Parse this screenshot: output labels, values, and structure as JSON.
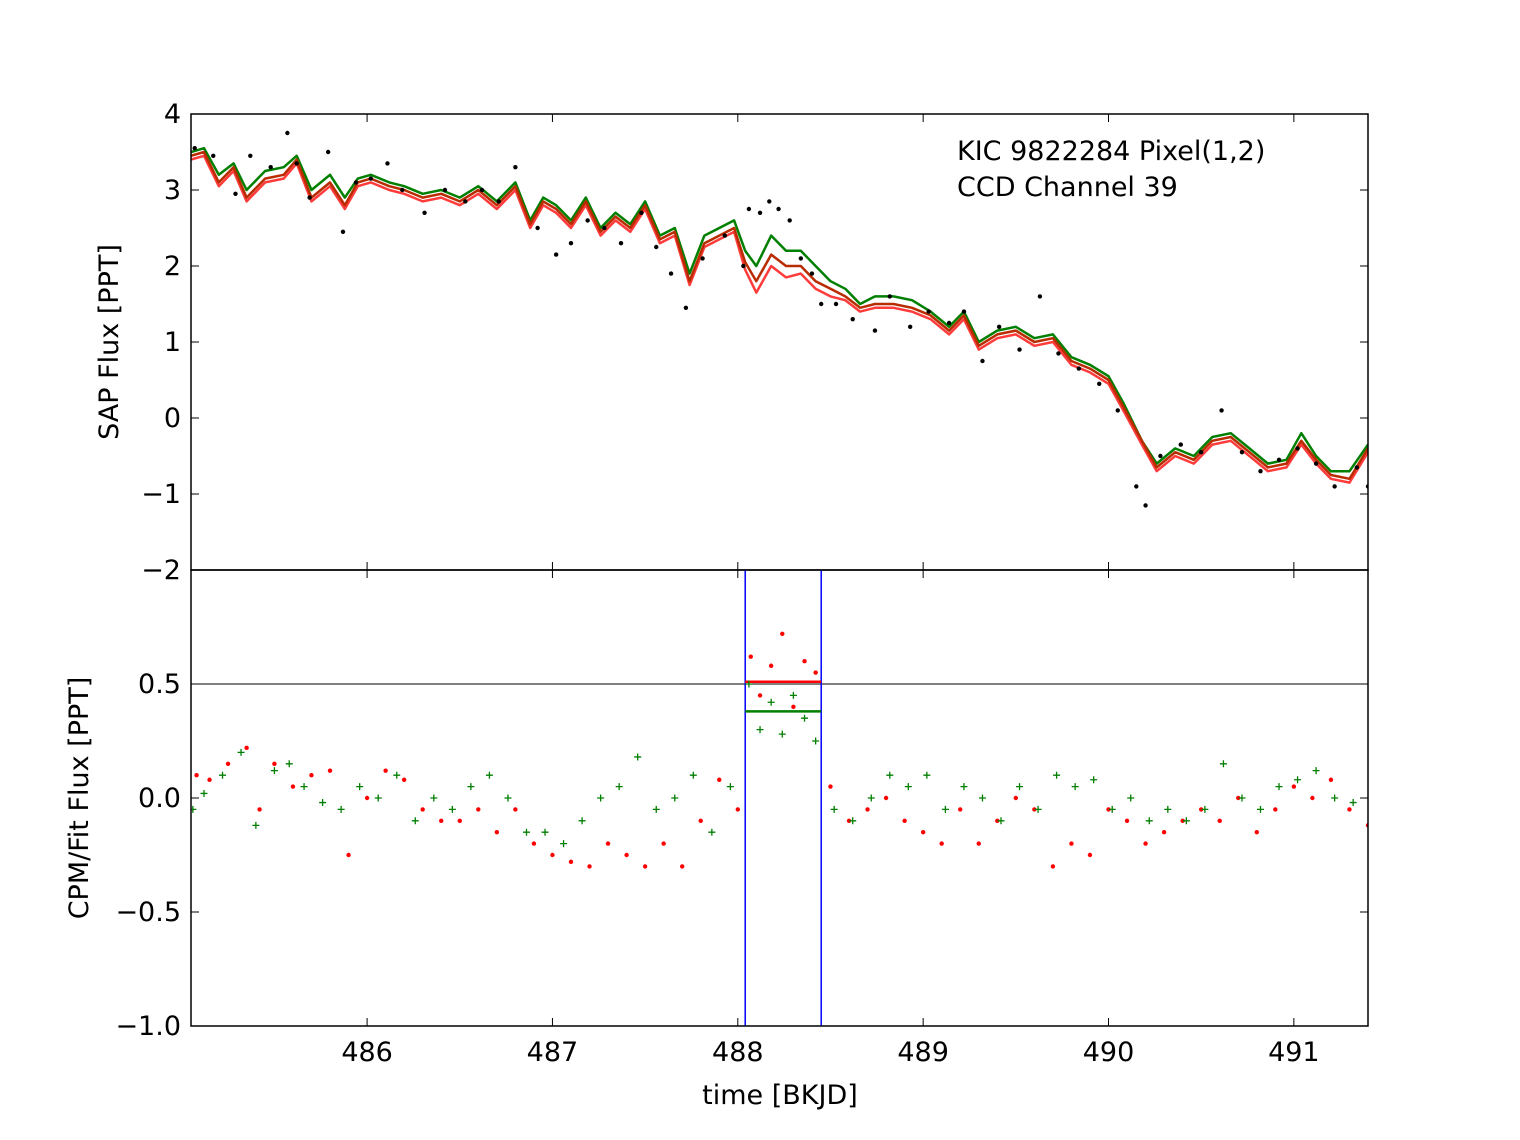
{
  "chart_data": [
    {
      "type": "line",
      "panel": "top",
      "annotation": [
        "KIC 9822284 Pixel(1,2)",
        "CCD Channel 39"
      ],
      "xlabel": "",
      "ylabel": "SAP Flux [PPT]",
      "xlim": [
        485.05,
        491.4
      ],
      "ylim": [
        -2,
        4
      ],
      "yticks": [
        -2,
        -1,
        0,
        1,
        2,
        3,
        4
      ],
      "ytick_labels": [
        "−2",
        "−1",
        "0",
        "1",
        "2",
        "3",
        "4"
      ],
      "xticks": [
        486,
        487,
        488,
        489,
        490,
        491
      ],
      "grid": false,
      "colors": {
        "data": "#000000",
        "green_model": "#007f00",
        "red_model": "#ff3b3b",
        "brown_model": "#b82c00"
      },
      "data_points": {
        "x": [
          485.07,
          485.17,
          485.29,
          485.37,
          485.48,
          485.57,
          485.62,
          485.69,
          485.79,
          485.87,
          485.94,
          486.02,
          486.11,
          486.19,
          486.31,
          486.42,
          486.53,
          486.62,
          486.71,
          486.8,
          486.92,
          487.02,
          487.1,
          487.19,
          487.28,
          487.37,
          487.48,
          487.56,
          487.64,
          487.72,
          487.81,
          487.93,
          488.03,
          488.06,
          488.12,
          488.17,
          488.22,
          488.28,
          488.34,
          488.4,
          488.45,
          488.53,
          488.62,
          488.74,
          488.82,
          488.93,
          489.03,
          489.14,
          489.22,
          489.32,
          489.41,
          489.52,
          489.63,
          489.73,
          489.84,
          489.95,
          490.05,
          490.15,
          490.2,
          490.28,
          490.39,
          490.5,
          490.61,
          490.72,
          490.82,
          490.92,
          491.02,
          491.12,
          491.22,
          491.34,
          491.4
        ],
        "y": [
          3.55,
          3.45,
          2.95,
          3.45,
          3.3,
          3.75,
          3.35,
          2.9,
          3.5,
          2.45,
          3.1,
          3.15,
          3.35,
          3.0,
          2.7,
          3.0,
          2.85,
          3.0,
          2.85,
          3.3,
          2.5,
          2.15,
          2.3,
          2.6,
          2.5,
          2.3,
          2.7,
          2.25,
          1.9,
          1.45,
          2.1,
          2.4,
          2.0,
          2.75,
          2.7,
          2.85,
          2.75,
          2.6,
          2.1,
          1.9,
          1.5,
          1.5,
          1.3,
          1.15,
          1.6,
          1.2,
          1.4,
          1.25,
          1.4,
          0.75,
          1.2,
          0.9,
          1.6,
          0.85,
          0.65,
          0.45,
          0.1,
          -0.9,
          -1.15,
          -0.5,
          -0.35,
          -0.45,
          0.1,
          -0.45,
          -0.7,
          -0.55,
          -0.4,
          -0.6,
          -0.9,
          -0.65,
          -0.9
        ]
      },
      "series": [
        {
          "color": "#007f00",
          "x": [
            485.05,
            485.12,
            485.2,
            485.28,
            485.35,
            485.45,
            485.55,
            485.62,
            485.7,
            485.8,
            485.88,
            485.95,
            486.02,
            486.12,
            486.2,
            486.3,
            486.4,
            486.5,
            486.6,
            486.7,
            486.8,
            486.88,
            486.95,
            487.02,
            487.1,
            487.18,
            487.26,
            487.34,
            487.42,
            487.5,
            487.58,
            487.66,
            487.74,
            487.82,
            487.9,
            487.98,
            488.04,
            488.1,
            488.18,
            488.26,
            488.34,
            488.42,
            488.5,
            488.58,
            488.66,
            488.74,
            488.84,
            488.94,
            489.04,
            489.14,
            489.22,
            489.3,
            489.4,
            489.5,
            489.6,
            489.7,
            489.8,
            489.9,
            490.0,
            490.08,
            490.18,
            490.26,
            490.36,
            490.46,
            490.56,
            490.66,
            490.76,
            490.86,
            490.96,
            491.04,
            491.12,
            491.2,
            491.3,
            491.4
          ],
          "y": [
            3.5,
            3.55,
            3.2,
            3.35,
            3.0,
            3.25,
            3.3,
            3.45,
            3.0,
            3.2,
            2.9,
            3.15,
            3.2,
            3.1,
            3.05,
            2.95,
            3.0,
            2.9,
            3.05,
            2.85,
            3.1,
            2.6,
            2.9,
            2.8,
            2.6,
            2.9,
            2.5,
            2.7,
            2.55,
            2.85,
            2.4,
            2.5,
            1.9,
            2.4,
            2.5,
            2.6,
            2.2,
            2.0,
            2.4,
            2.2,
            2.2,
            2.0,
            1.8,
            1.7,
            1.5,
            1.6,
            1.6,
            1.55,
            1.4,
            1.2,
            1.4,
            1.0,
            1.15,
            1.2,
            1.05,
            1.1,
            0.8,
            0.7,
            0.55,
            0.2,
            -0.3,
            -0.6,
            -0.4,
            -0.5,
            -0.25,
            -0.2,
            -0.4,
            -0.6,
            -0.55,
            -0.2,
            -0.5,
            -0.7,
            -0.7,
            -0.35
          ]
        },
        {
          "color": "#ff3b3b",
          "x": [
            485.05,
            485.12,
            485.2,
            485.28,
            485.35,
            485.45,
            485.55,
            485.62,
            485.7,
            485.8,
            485.88,
            485.95,
            486.02,
            486.12,
            486.2,
            486.3,
            486.4,
            486.5,
            486.6,
            486.7,
            486.8,
            486.88,
            486.95,
            487.02,
            487.1,
            487.18,
            487.26,
            487.34,
            487.42,
            487.5,
            487.58,
            487.66,
            487.74,
            487.82,
            487.9,
            487.98,
            488.04,
            488.1,
            488.18,
            488.26,
            488.34,
            488.42,
            488.5,
            488.58,
            488.66,
            488.74,
            488.84,
            488.94,
            489.04,
            489.14,
            489.22,
            489.3,
            489.4,
            489.5,
            489.6,
            489.7,
            489.8,
            489.9,
            490.0,
            490.08,
            490.18,
            490.26,
            490.36,
            490.46,
            490.56,
            490.66,
            490.76,
            490.86,
            490.96,
            491.04,
            491.12,
            491.2,
            491.3,
            491.4
          ],
          "y": [
            3.4,
            3.45,
            3.05,
            3.25,
            2.85,
            3.1,
            3.15,
            3.35,
            2.85,
            3.05,
            2.75,
            3.05,
            3.1,
            3.0,
            2.95,
            2.85,
            2.9,
            2.8,
            2.95,
            2.75,
            3.0,
            2.5,
            2.8,
            2.7,
            2.5,
            2.8,
            2.4,
            2.6,
            2.45,
            2.75,
            2.3,
            2.4,
            1.75,
            2.25,
            2.35,
            2.45,
            1.95,
            1.65,
            2.0,
            1.85,
            1.9,
            1.7,
            1.6,
            1.55,
            1.4,
            1.45,
            1.45,
            1.4,
            1.3,
            1.1,
            1.3,
            0.9,
            1.05,
            1.1,
            0.95,
            1.0,
            0.7,
            0.6,
            0.45,
            0.1,
            -0.35,
            -0.7,
            -0.5,
            -0.6,
            -0.35,
            -0.3,
            -0.5,
            -0.7,
            -0.65,
            -0.35,
            -0.6,
            -0.8,
            -0.85,
            -0.45
          ]
        },
        {
          "color": "#b82c00",
          "x": [
            485.05,
            485.12,
            485.2,
            485.28,
            485.35,
            485.45,
            485.55,
            485.62,
            485.7,
            485.8,
            485.88,
            485.95,
            486.02,
            486.12,
            486.2,
            486.3,
            486.4,
            486.5,
            486.6,
            486.7,
            486.8,
            486.88,
            486.95,
            487.02,
            487.1,
            487.18,
            487.26,
            487.34,
            487.42,
            487.5,
            487.58,
            487.66,
            487.74,
            487.82,
            487.9,
            487.98,
            488.04,
            488.1,
            488.18,
            488.26,
            488.34,
            488.42,
            488.5,
            488.58,
            488.66,
            488.74,
            488.84,
            488.94,
            489.04,
            489.14,
            489.22,
            489.3,
            489.4,
            489.5,
            489.6,
            489.7,
            489.8,
            489.9,
            490.0,
            490.08,
            490.18,
            490.26,
            490.36,
            490.46,
            490.56,
            490.66,
            490.76,
            490.86,
            490.96,
            491.04,
            491.12,
            491.2,
            491.3,
            491.4
          ],
          "y": [
            3.45,
            3.5,
            3.1,
            3.3,
            2.9,
            3.15,
            3.2,
            3.4,
            2.9,
            3.1,
            2.8,
            3.1,
            3.15,
            3.05,
            3.0,
            2.9,
            2.95,
            2.85,
            3.0,
            2.8,
            3.05,
            2.55,
            2.85,
            2.75,
            2.55,
            2.85,
            2.45,
            2.65,
            2.5,
            2.8,
            2.35,
            2.45,
            1.8,
            2.3,
            2.4,
            2.5,
            2.05,
            1.8,
            2.15,
            2.0,
            2.0,
            1.8,
            1.7,
            1.6,
            1.45,
            1.5,
            1.5,
            1.45,
            1.35,
            1.15,
            1.35,
            0.95,
            1.1,
            1.15,
            1.0,
            1.05,
            0.75,
            0.65,
            0.5,
            0.15,
            -0.3,
            -0.65,
            -0.45,
            -0.55,
            -0.3,
            -0.25,
            -0.45,
            -0.65,
            -0.6,
            -0.3,
            -0.55,
            -0.75,
            -0.8,
            -0.4
          ]
        }
      ]
    },
    {
      "type": "scatter",
      "panel": "bottom",
      "xlabel": "time [BKJD]",
      "ylabel": "CPM/Fit Flux [PPT]",
      "xlim": [
        485.05,
        491.4
      ],
      "ylim": [
        -1.0,
        1.0
      ],
      "yticks": [
        -1.0,
        -0.5,
        0.0,
        0.5
      ],
      "ytick_labels": [
        "−1.0",
        "−0.5",
        "0.0",
        "0.5"
      ],
      "xticks": [
        486,
        487,
        488,
        489,
        490,
        491
      ],
      "xtick_labels": [
        "486",
        "487",
        "488",
        "489",
        "490",
        "491"
      ],
      "grid": false,
      "hline": 0.5,
      "vlines": [
        488.04,
        488.45
      ],
      "vline_color": "#0000ff",
      "transit_levels": [
        {
          "color": "#ff0000",
          "y": 0.51,
          "x0": 488.04,
          "x1": 488.45
        },
        {
          "color": "#007f00",
          "y": 0.38,
          "x0": 488.04,
          "x1": 488.45
        }
      ],
      "series": [
        {
          "marker": "dot",
          "color": "#ff0000",
          "x": [
            485.08,
            485.15,
            485.25,
            485.35,
            485.42,
            485.5,
            485.6,
            485.7,
            485.8,
            485.9,
            486.0,
            486.1,
            486.2,
            486.3,
            486.4,
            486.5,
            486.6,
            486.7,
            486.8,
            486.9,
            487.0,
            487.1,
            487.2,
            487.3,
            487.4,
            487.5,
            487.6,
            487.7,
            487.8,
            487.9,
            488.0,
            488.07,
            488.12,
            488.18,
            488.24,
            488.3,
            488.36,
            488.42,
            488.5,
            488.6,
            488.7,
            488.8,
            488.9,
            489.0,
            489.1,
            489.2,
            489.3,
            489.4,
            489.5,
            489.6,
            489.7,
            489.8,
            489.9,
            490.0,
            490.1,
            490.2,
            490.3,
            490.4,
            490.5,
            490.6,
            490.7,
            490.8,
            490.9,
            491.0,
            491.1,
            491.2,
            491.3,
            491.4
          ],
          "y": [
            0.1,
            0.08,
            0.15,
            0.22,
            -0.05,
            0.15,
            0.05,
            0.1,
            0.12,
            -0.25,
            0.0,
            0.12,
            0.08,
            -0.05,
            -0.1,
            -0.1,
            -0.05,
            -0.15,
            -0.05,
            -0.2,
            -0.25,
            -0.28,
            -0.3,
            -0.2,
            -0.25,
            -0.3,
            -0.2,
            -0.3,
            -0.1,
            0.08,
            -0.05,
            0.62,
            0.45,
            0.58,
            0.72,
            0.4,
            0.6,
            0.55,
            0.05,
            -0.1,
            -0.05,
            0.0,
            -0.1,
            -0.15,
            -0.2,
            -0.05,
            -0.2,
            -0.1,
            0.0,
            -0.05,
            -0.3,
            -0.2,
            -0.25,
            -0.05,
            -0.1,
            -0.2,
            -0.15,
            -0.1,
            -0.05,
            -0.1,
            0.0,
            -0.15,
            -0.05,
            0.05,
            0.0,
            0.08,
            -0.05,
            -0.12
          ]
        },
        {
          "marker": "plus",
          "color": "#007f00",
          "x": [
            485.06,
            485.12,
            485.22,
            485.32,
            485.4,
            485.5,
            485.58,
            485.66,
            485.76,
            485.86,
            485.96,
            486.06,
            486.16,
            486.26,
            486.36,
            486.46,
            486.56,
            486.66,
            486.76,
            486.86,
            486.96,
            487.06,
            487.16,
            487.26,
            487.36,
            487.46,
            487.56,
            487.66,
            487.76,
            487.86,
            487.96,
            488.06,
            488.12,
            488.18,
            488.24,
            488.3,
            488.36,
            488.42,
            488.52,
            488.62,
            488.72,
            488.82,
            488.92,
            489.02,
            489.12,
            489.22,
            489.32,
            489.42,
            489.52,
            489.62,
            489.72,
            489.82,
            489.92,
            490.02,
            490.12,
            490.22,
            490.32,
            490.42,
            490.52,
            490.62,
            490.72,
            490.82,
            490.92,
            491.02,
            491.12,
            491.22,
            491.32
          ],
          "y": [
            -0.05,
            0.02,
            0.1,
            0.2,
            -0.12,
            0.12,
            0.15,
            0.05,
            -0.02,
            -0.05,
            0.05,
            0.0,
            0.1,
            -0.1,
            0.0,
            -0.05,
            0.05,
            0.1,
            0.0,
            -0.15,
            -0.15,
            -0.2,
            -0.1,
            0.0,
            0.05,
            0.18,
            -0.05,
            0.0,
            0.1,
            -0.15,
            0.05,
            0.5,
            0.3,
            0.42,
            0.28,
            0.45,
            0.35,
            0.25,
            -0.05,
            -0.1,
            0.0,
            0.1,
            0.05,
            0.1,
            -0.05,
            0.05,
            0.0,
            -0.1,
            0.05,
            -0.05,
            0.1,
            0.05,
            0.08,
            -0.05,
            0.0,
            -0.1,
            -0.05,
            -0.1,
            -0.05,
            0.15,
            0.0,
            -0.05,
            0.05,
            0.08,
            0.12,
            0.0,
            -0.02
          ]
        }
      ]
    }
  ]
}
